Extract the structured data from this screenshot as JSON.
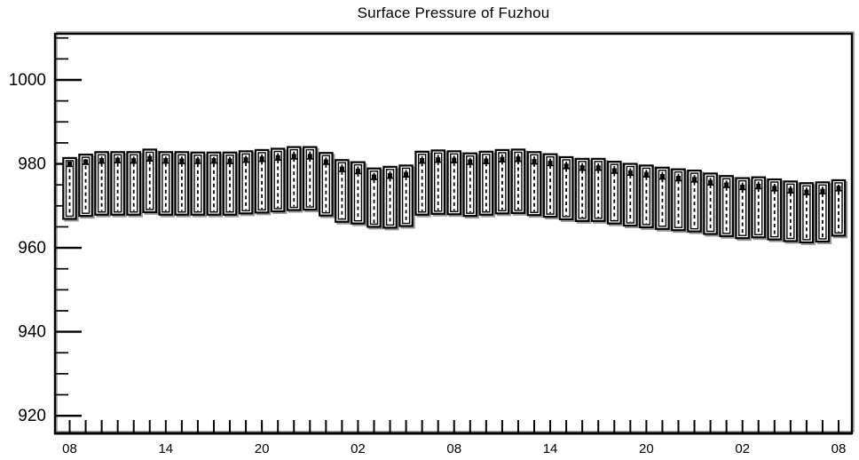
{
  "chart_data": {
    "type": "boxplot",
    "title": "Surface Pressure of Fuzhou",
    "xlabel": "",
    "ylabel": "",
    "n_points": 49,
    "x_hour_labels": [
      "08",
      "14",
      "20",
      "02",
      "08",
      "14",
      "20",
      "02",
      "08"
    ],
    "x_label_every": 6,
    "ylim": [
      915.8,
      1011.0
    ],
    "yticks_major": [
      920,
      940,
      960,
      980,
      1000
    ],
    "ytick_minor_step": 5,
    "grid": false,
    "legend": false,
    "series": [
      {
        "name": "max",
        "values": [
          981.4,
          982.2,
          982.8,
          982.8,
          982.8,
          983.4,
          982.8,
          982.8,
          982.7,
          982.7,
          982.7,
          983.0,
          983.3,
          983.6,
          984.0,
          984.0,
          982.6,
          980.9,
          980.4,
          978.9,
          979.3,
          979.6,
          982.9,
          983.2,
          983.0,
          982.5,
          982.9,
          983.3,
          983.4,
          982.8,
          982.3,
          981.6,
          981.2,
          981.2,
          980.5,
          980.0,
          979.6,
          979.1,
          978.7,
          978.4,
          977.7,
          977.1,
          976.6,
          976.8,
          976.3,
          975.8,
          975.4,
          975.6,
          976.1
        ]
      },
      {
        "name": "mean",
        "values": [
          979.4,
          979.9,
          980.2,
          980.3,
          980.2,
          980.7,
          980.2,
          980.1,
          980.1,
          980.2,
          980.1,
          980.4,
          980.6,
          980.9,
          981.2,
          981.2,
          979.9,
          978.2,
          977.7,
          976.3,
          976.6,
          976.9,
          980.2,
          980.4,
          980.3,
          979.9,
          980.1,
          980.5,
          980.6,
          980.0,
          979.6,
          978.9,
          978.5,
          978.5,
          977.8,
          977.3,
          976.9,
          976.4,
          976.0,
          975.7,
          975.0,
          974.4,
          973.9,
          974.1,
          973.6,
          973.1,
          972.7,
          972.9,
          973.6
        ]
      },
      {
        "name": "min",
        "values": [
          966.9,
          967.6,
          967.9,
          967.9,
          967.9,
          968.5,
          967.9,
          967.9,
          967.9,
          967.9,
          967.9,
          968.2,
          968.4,
          968.7,
          969.0,
          969.1,
          967.7,
          966.2,
          965.8,
          965.0,
          964.8,
          965.2,
          967.9,
          968.1,
          968.0,
          967.6,
          967.9,
          968.2,
          968.3,
          967.8,
          967.4,
          966.8,
          966.4,
          966.4,
          965.8,
          965.3,
          964.9,
          964.5,
          964.2,
          963.9,
          963.3,
          962.8,
          962.3,
          962.5,
          962.0,
          961.6,
          961.3,
          961.5,
          962.9
        ]
      }
    ],
    "colors": {
      "box": "#000000",
      "fill": "#ffffff",
      "shadow": "#9a9a9a",
      "text": "#000000",
      "background": "#ffffff"
    }
  }
}
